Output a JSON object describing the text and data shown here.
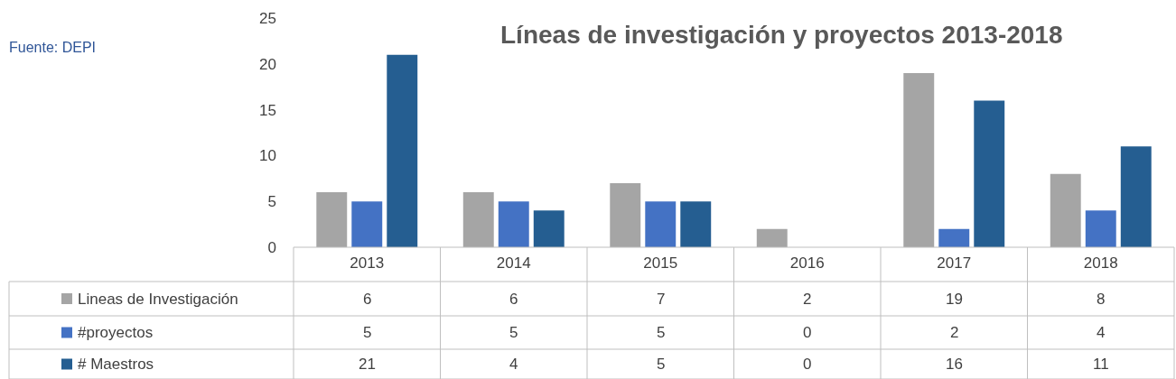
{
  "chart_data": {
    "type": "bar",
    "title": "Líneas de investigación y proyectos 2013-2018",
    "annotations": [
      "Fuente: DEPI"
    ],
    "categories": [
      "2013",
      "2014",
      "2015",
      "2016",
      "2017",
      "2018"
    ],
    "series": [
      {
        "name": "Lineas de Investigación",
        "color": "#a5a5a5",
        "values": [
          6,
          6,
          7,
          2,
          19,
          8
        ]
      },
      {
        "name": "#proyectos",
        "color": "#4472c4",
        "values": [
          5,
          5,
          5,
          0,
          2,
          4
        ]
      },
      {
        "name": "# Maestros",
        "color": "#255e91",
        "values": [
          21,
          4,
          5,
          0,
          16,
          11
        ]
      }
    ],
    "ylim": [
      0,
      25
    ],
    "yticks": [
      0,
      5,
      10,
      15,
      20,
      25
    ],
    "grid": false,
    "data_labels": true,
    "legend": "bottom"
  }
}
